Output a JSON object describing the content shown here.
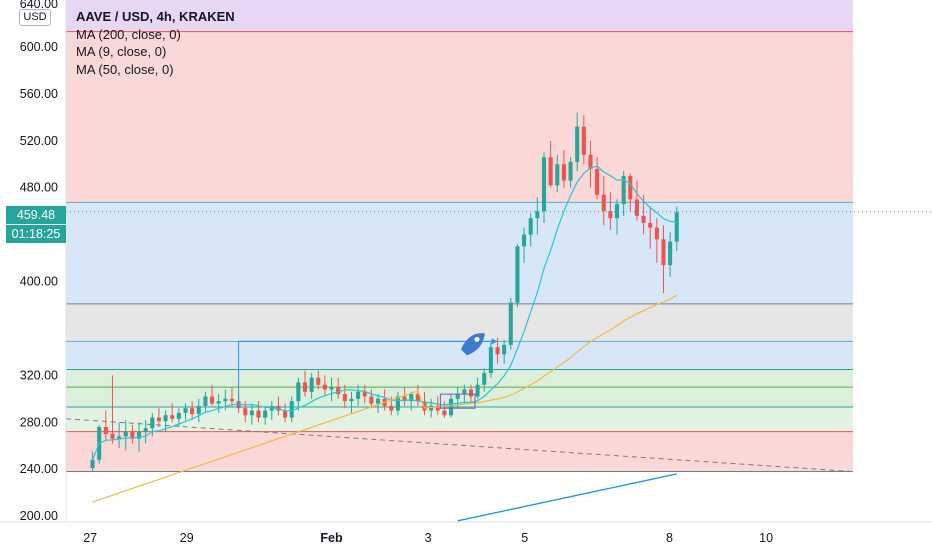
{
  "legend": {
    "title": "AAVE / USD, 4h, KRAKEN",
    "ma_lines": [
      "MA (200, close, 0)",
      "MA (9, close, 0)",
      "MA (50, close, 0)"
    ]
  },
  "scale_badge": "USD",
  "top_cut_label": "640.00",
  "current_price_label": "459.48",
  "countdown_label": "01:18:25",
  "colors": {
    "up": "#26a69a",
    "down": "#ef5350",
    "ma9": "#26c6da",
    "ma50": "#f4b942",
    "ma200": "#2196f3",
    "fib_purple": "#e8d7f4",
    "fib_red": "#fbd8d8",
    "fib_blue": "#d7e7f7",
    "fib_gray": "#e6e6e6",
    "fib_green": "#dcefdc"
  },
  "chart_data": {
    "type": "candlestick",
    "title": "AAVE / USD, 4h, KRAKEN",
    "ylim": [
      195,
      640
    ],
    "y_ticks": [
      200,
      240,
      280,
      320,
      360,
      400,
      440,
      480,
      520,
      560,
      600
    ],
    "y_tick_labels": [
      "200.00",
      "240.00",
      "280.00",
      "320.00",
      "",
      "400.00",
      "",
      "480.00",
      "520.00",
      "560.00",
      "600.00"
    ],
    "x_ticks": [
      {
        "label": "27",
        "x": 0
      },
      {
        "label": "29",
        "x": 2
      },
      {
        "label": "Feb",
        "x": 5
      },
      {
        "label": "3",
        "x": 7
      },
      {
        "label": "5",
        "x": 9
      },
      {
        "label": "8",
        "x": 12
      },
      {
        "label": "10",
        "x": 14
      }
    ],
    "xlim": [
      -0.5,
      15.8
    ],
    "fib_levels": [
      {
        "value": 613,
        "color": "#ef5350",
        "zone_above": "#e8d7f4"
      },
      {
        "value": 467.5,
        "color": "#5fa8d8",
        "zone_above": "#fbd8d8"
      },
      {
        "value": 381,
        "color": "#787b86",
        "zone_above": "#d7e7f7"
      },
      {
        "value": 349,
        "color": "#5fa8d8",
        "zone_above": "#e6e6e6"
      },
      {
        "value": 325,
        "color": "#26a69a",
        "zone_above": "#d7e7f7"
      },
      {
        "value": 310,
        "color": "#4caf50",
        "zone_above": "#dcefdc"
      },
      {
        "value": 293,
        "color": "#26a69a",
        "zone_above": "#dcefdc"
      },
      {
        "value": 272,
        "color": "#ef5350",
        "zone_above": "#e3f2e3"
      },
      {
        "value": 238,
        "color": "#787b86",
        "zone_above": "#fbd8d8"
      }
    ],
    "candles": [
      [
        241,
        255,
        238,
        248
      ],
      [
        248,
        278,
        245,
        276
      ],
      [
        276,
        290,
        265,
        270
      ],
      [
        270,
        320,
        262,
        266
      ],
      [
        266,
        280,
        258,
        268
      ],
      [
        268,
        282,
        256,
        272
      ],
      [
        272,
        278,
        262,
        266
      ],
      [
        266,
        280,
        255,
        272
      ],
      [
        272,
        282,
        262,
        275
      ],
      [
        275,
        288,
        268,
        284
      ],
      [
        284,
        292,
        276,
        281
      ],
      [
        281,
        290,
        272,
        286
      ],
      [
        286,
        296,
        280,
        283
      ],
      [
        283,
        292,
        276,
        288
      ],
      [
        288,
        296,
        282,
        292
      ],
      [
        292,
        298,
        282,
        287
      ],
      [
        287,
        300,
        280,
        294
      ],
      [
        294,
        306,
        288,
        302
      ],
      [
        302,
        312,
        294,
        296
      ],
      [
        296,
        304,
        288,
        298
      ],
      [
        298,
        308,
        290,
        300
      ],
      [
        300,
        310,
        294,
        298
      ],
      [
        298,
        304,
        288,
        292
      ],
      [
        292,
        298,
        280,
        286
      ],
      [
        286,
        296,
        278,
        290
      ],
      [
        290,
        298,
        280,
        284
      ],
      [
        284,
        294,
        278,
        290
      ],
      [
        290,
        298,
        282,
        294
      ],
      [
        294,
        302,
        286,
        290
      ],
      [
        290,
        296,
        280,
        284
      ],
      [
        284,
        302,
        280,
        298
      ],
      [
        298,
        318,
        290,
        314
      ],
      [
        314,
        324,
        302,
        306
      ],
      [
        306,
        322,
        300,
        318
      ],
      [
        318,
        324,
        308,
        312
      ],
      [
        312,
        320,
        302,
        308
      ],
      [
        308,
        318,
        298,
        310
      ],
      [
        310,
        318,
        300,
        304
      ],
      [
        304,
        312,
        292,
        298
      ],
      [
        298,
        306,
        288,
        300
      ],
      [
        300,
        312,
        294,
        306
      ],
      [
        306,
        312,
        296,
        302
      ],
      [
        302,
        308,
        292,
        296
      ],
      [
        296,
        304,
        288,
        300
      ],
      [
        300,
        308,
        290,
        294
      ],
      [
        294,
        302,
        286,
        290
      ],
      [
        290,
        306,
        286,
        302
      ],
      [
        302,
        310,
        294,
        298
      ],
      [
        298,
        306,
        290,
        304
      ],
      [
        304,
        312,
        294,
        298
      ],
      [
        298,
        306,
        286,
        290
      ],
      [
        290,
        300,
        284,
        294
      ],
      [
        294,
        302,
        286,
        290
      ],
      [
        290,
        298,
        284,
        286
      ],
      [
        286,
        304,
        284,
        300
      ],
      [
        300,
        310,
        292,
        304
      ],
      [
        304,
        312,
        296,
        308
      ],
      [
        308,
        312,
        296,
        302
      ],
      [
        302,
        318,
        300,
        312
      ],
      [
        312,
        326,
        306,
        322
      ],
      [
        322,
        348,
        318,
        344
      ],
      [
        344,
        352,
        330,
        338
      ],
      [
        338,
        350,
        330,
        346
      ],
      [
        346,
        386,
        342,
        382
      ],
      [
        382,
        432,
        378,
        430
      ],
      [
        430,
        446,
        416,
        440
      ],
      [
        440,
        458,
        430,
        454
      ],
      [
        454,
        472,
        440,
        460
      ],
      [
        460,
        510,
        450,
        506
      ],
      [
        506,
        520,
        480,
        482
      ],
      [
        482,
        508,
        476,
        500
      ],
      [
        500,
        512,
        480,
        486
      ],
      [
        486,
        506,
        480,
        502
      ],
      [
        502,
        544,
        494,
        532
      ],
      [
        532,
        542,
        500,
        508
      ],
      [
        508,
        520,
        480,
        496
      ],
      [
        496,
        506,
        470,
        474
      ],
      [
        474,
        490,
        448,
        460
      ],
      [
        460,
        476,
        444,
        454
      ],
      [
        454,
        470,
        440,
        466
      ],
      [
        466,
        494,
        456,
        490
      ],
      [
        490,
        492,
        460,
        470
      ],
      [
        470,
        486,
        452,
        456
      ],
      [
        456,
        474,
        440,
        450
      ],
      [
        450,
        464,
        428,
        446
      ],
      [
        446,
        454,
        416,
        436
      ],
      [
        436,
        448,
        390,
        414
      ],
      [
        414,
        442,
        404,
        434
      ],
      [
        434,
        464,
        426,
        459
      ]
    ],
    "series": [
      {
        "name": "MA (9, close, 0)",
        "color": "#26c6da"
      },
      {
        "name": "MA (50, close, 0)",
        "color": "#f4b942"
      },
      {
        "name": "MA (200, close, 0)",
        "color": "#2196f3"
      }
    ],
    "current_price": 459.48,
    "annotation_arrow": {
      "from_value": 349,
      "to_value": 349
    },
    "grid": false,
    "legend_position": "top-left"
  }
}
